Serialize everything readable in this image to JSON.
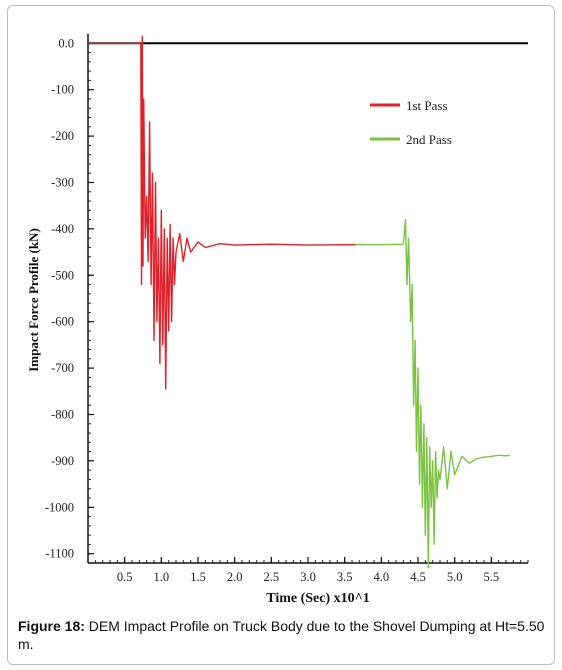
{
  "chart_data": {
    "type": "line",
    "title": "",
    "xlabel": "Time (Sec) x10^1",
    "ylabel": "Impact Force Profile (kN)",
    "xlim": [
      0,
      6.0
    ],
    "ylim": [
      -1120,
      20
    ],
    "x_ticks": [
      0.5,
      1.0,
      1.5,
      2.0,
      2.5,
      3.0,
      3.5,
      4.0,
      4.5,
      5.0,
      5.5
    ],
    "x_tick_labels": [
      "0.5",
      "1.0",
      "1.5",
      "2.0",
      "2.5",
      "3.0",
      "3.5",
      "4.0",
      "4.5",
      "5.0",
      "5.5"
    ],
    "y_ticks": [
      0,
      -100,
      -200,
      -300,
      -400,
      -500,
      -600,
      -700,
      -800,
      -900,
      -1000,
      -1100
    ],
    "y_tick_labels": [
      "0.0",
      "-100",
      "-200",
      "-300",
      "-400",
      "-500",
      "-600",
      "-700",
      "-800",
      "-900",
      "-1000",
      "-1100"
    ],
    "legend_position": "top-right",
    "series": [
      {
        "name": "1st Pass",
        "color": "#e0202a",
        "x": [
          0.0,
          0.72,
          0.73,
          0.74,
          0.75,
          0.76,
          0.78,
          0.8,
          0.82,
          0.84,
          0.86,
          0.88,
          0.9,
          0.92,
          0.94,
          0.96,
          0.98,
          1.0,
          1.02,
          1.04,
          1.06,
          1.08,
          1.1,
          1.12,
          1.14,
          1.16,
          1.18,
          1.2,
          1.25,
          1.3,
          1.35,
          1.4,
          1.5,
          1.6,
          1.8,
          2.0,
          2.5,
          3.0,
          3.5,
          3.65
        ],
        "y": [
          0,
          0,
          -520,
          15,
          -480,
          -120,
          -420,
          -330,
          -470,
          -170,
          -520,
          -280,
          -640,
          -300,
          -600,
          -420,
          -690,
          -360,
          -650,
          -400,
          -745,
          -420,
          -620,
          -390,
          -600,
          -420,
          -520,
          -450,
          -410,
          -470,
          -420,
          -450,
          -428,
          -440,
          -432,
          -435,
          -433,
          -435,
          -434,
          -434
        ]
      },
      {
        "name": "2nd Pass",
        "color": "#7cc242",
        "x": [
          3.65,
          4.0,
          4.3,
          4.33,
          4.35,
          4.37,
          4.4,
          4.42,
          4.44,
          4.46,
          4.48,
          4.5,
          4.52,
          4.54,
          4.56,
          4.58,
          4.6,
          4.62,
          4.64,
          4.66,
          4.68,
          4.7,
          4.72,
          4.74,
          4.76,
          4.78,
          4.8,
          4.85,
          4.9,
          4.95,
          5.0,
          5.1,
          5.2,
          5.3,
          5.4,
          5.5,
          5.6,
          5.7,
          5.75
        ],
        "y": [
          -434,
          -434,
          -433,
          -380,
          -520,
          -420,
          -600,
          -520,
          -780,
          -640,
          -880,
          -700,
          -950,
          -780,
          -1000,
          -820,
          -1060,
          -850,
          -1130,
          -870,
          -1000,
          -900,
          -1080,
          -880,
          -980,
          -920,
          -940,
          -870,
          -960,
          -880,
          -930,
          -890,
          -905,
          -895,
          -892,
          -890,
          -888,
          -889,
          -888
        ]
      }
    ]
  },
  "caption": {
    "label": "Figure 18:",
    "text": " DEM Impact Profile on Truck Body due to the Shovel Dumping at Ht=5.50 m."
  }
}
